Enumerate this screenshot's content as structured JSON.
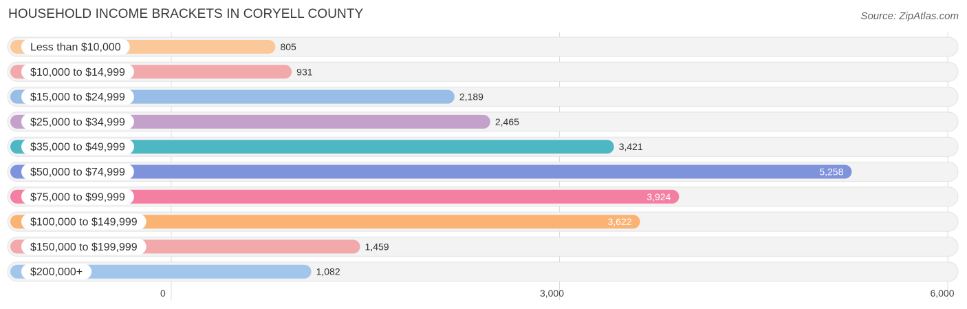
{
  "header": {
    "title": "HOUSEHOLD INCOME BRACKETS IN CORYELL COUNTY",
    "source": "Source: ZipAtlas.com"
  },
  "chart_data": {
    "type": "bar",
    "orientation": "horizontal",
    "title": "HOUSEHOLD INCOME BRACKETS IN CORYELL COUNTY",
    "categories": [
      "Less than $10,000",
      "$10,000 to $14,999",
      "$15,000 to $24,999",
      "$25,000 to $34,999",
      "$35,000 to $49,999",
      "$50,000 to $74,999",
      "$75,000 to $99,999",
      "$100,000 to $149,999",
      "$150,000 to $199,999",
      "$200,000+"
    ],
    "values": [
      805,
      931,
      2189,
      2465,
      3421,
      5258,
      3924,
      3622,
      1459,
      1082
    ],
    "value_labels": [
      "805",
      "931",
      "2,189",
      "2,465",
      "3,421",
      "5,258",
      "3,924",
      "3,622",
      "1,459",
      "1,082"
    ],
    "colors": [
      "#fbc89a",
      "#f1a9ac",
      "#98bde6",
      "#c3a1ca",
      "#4db7c4",
      "#7e93dc",
      "#f47fa3",
      "#fbb374",
      "#f1a9ac",
      "#a2c5ec"
    ],
    "xlim": [
      0,
      6000
    ],
    "xticks": [
      0,
      3000,
      6000
    ],
    "xtick_labels": [
      "0",
      "3,000",
      "6,000"
    ],
    "grid": true,
    "xlabel": "",
    "ylabel": ""
  }
}
